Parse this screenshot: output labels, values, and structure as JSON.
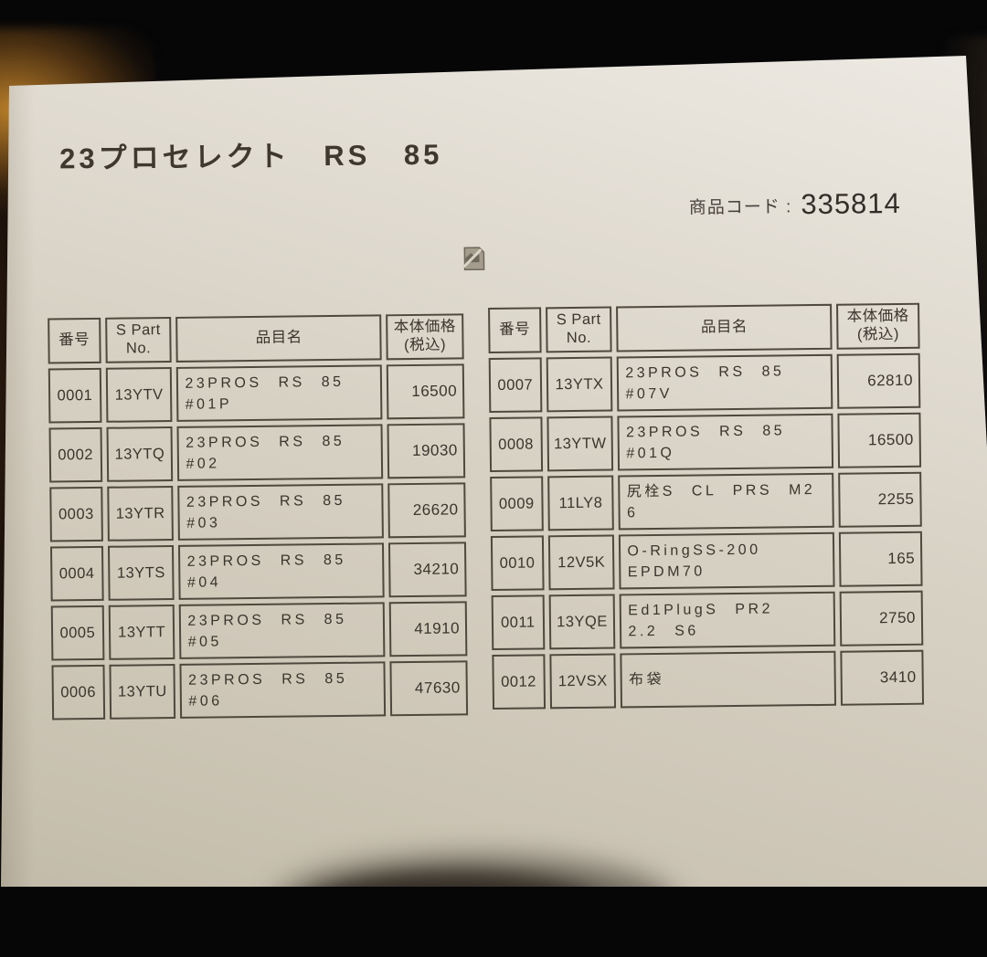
{
  "photo": {
    "background_color": "#060607",
    "paper_color": "#d6d0c3",
    "amber_glow_color": "#c4862c",
    "border_color": "#4e483d",
    "ink_color": "#3a352c"
  },
  "document": {
    "title": "23プロセレクト RS 85",
    "product_code_label": "商品コード :",
    "product_code_value": "335814",
    "table_headers": {
      "no": "番号",
      "part": "S Part\nNo.",
      "item": "品目名",
      "price": "本体価格\n(税込)"
    },
    "tables": [
      {
        "rows": [
          {
            "no": "0001",
            "part": "13YTV",
            "item": "23PROS RS 85\n#01P",
            "price": "16500"
          },
          {
            "no": "0002",
            "part": "13YTQ",
            "item": "23PROS RS 85\n#02",
            "price": "19030"
          },
          {
            "no": "0003",
            "part": "13YTR",
            "item": "23PROS RS 85\n#03",
            "price": "26620"
          },
          {
            "no": "0004",
            "part": "13YTS",
            "item": "23PROS RS 85\n#04",
            "price": "34210"
          },
          {
            "no": "0005",
            "part": "13YTT",
            "item": "23PROS RS 85\n#05",
            "price": "41910"
          },
          {
            "no": "0006",
            "part": "13YTU",
            "item": "23PROS RS 85\n#06",
            "price": "47630"
          }
        ]
      },
      {
        "rows": [
          {
            "no": "0007",
            "part": "13YTX",
            "item": "23PROS RS 85\n#07V",
            "price": "62810"
          },
          {
            "no": "0008",
            "part": "13YTW",
            "item": "23PROS RS 85\n#01Q",
            "price": "16500"
          },
          {
            "no": "0009",
            "part": "11LY8",
            "item": "尻栓S CL PRS M2\n6",
            "price": "2255"
          },
          {
            "no": "0010",
            "part": "12V5K",
            "item": "O-RingSS-200\nEPDM70",
            "price": "165"
          },
          {
            "no": "0011",
            "part": "13YQE",
            "item": "Ed1PlugS PR2\n2.2 S6",
            "price": "2750"
          },
          {
            "no": "0012",
            "part": "12VSX",
            "item": "布袋",
            "price": "3410"
          }
        ]
      }
    ]
  }
}
